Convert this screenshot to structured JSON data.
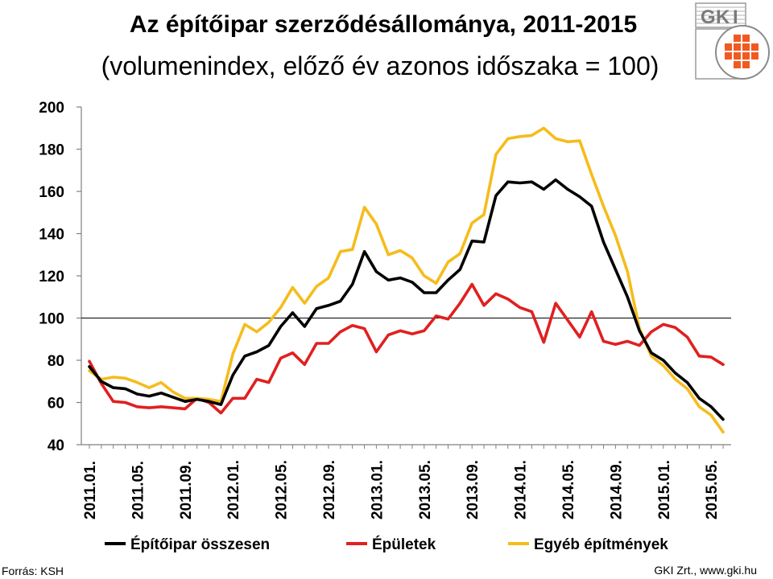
{
  "header": {
    "title": "Az építőipar szerződésállománya, 2011-2015",
    "subtitle": "(volumenindex, előző év azonos időszaka = 100)"
  },
  "logo": {
    "letters": [
      "G",
      "K",
      "I"
    ],
    "icon": "gki-logo-icon"
  },
  "footer": {
    "source": "Forrás: KSH",
    "credit": "GKI Zrt., www.gki.hu"
  },
  "colors": {
    "total": "#000000",
    "buildings": "#e02020",
    "other": "#f5bc1c",
    "reference_line": "#000000",
    "axis": "#808080"
  },
  "chart_data": {
    "type": "line",
    "title": "Az építőipar szerződésállománya, 2011-2015",
    "subtitle": "(volumenindex, előző év azonos időszaka = 100)",
    "xlabel": "",
    "ylabel": "",
    "ylim": [
      40,
      200
    ],
    "yticks": [
      40,
      60,
      80,
      100,
      120,
      140,
      160,
      180,
      200
    ],
    "reference_value": 100,
    "grid": false,
    "legend_position": "bottom",
    "x": [
      "2011.01.",
      "2011.02.",
      "2011.03.",
      "2011.04.",
      "2011.05.",
      "2011.06.",
      "2011.07.",
      "2011.08.",
      "2011.09.",
      "2011.10.",
      "2011.11.",
      "2011.12.",
      "2012.01.",
      "2012.02.",
      "2012.03.",
      "2012.04.",
      "2012.05.",
      "2012.06.",
      "2012.07.",
      "2012.08.",
      "2012.09.",
      "2012.10.",
      "2012.11.",
      "2012.12.",
      "2013.01.",
      "2013.02.",
      "2013.03.",
      "2013.04.",
      "2013.05.",
      "2013.06.",
      "2013.07.",
      "2013.08.",
      "2013.09.",
      "2013.10.",
      "2013.11.",
      "2013.12.",
      "2014.01.",
      "2014.02.",
      "2014.03.",
      "2014.04.",
      "2014.05.",
      "2014.06.",
      "2014.07.",
      "2014.08.",
      "2014.09.",
      "2014.10.",
      "2014.11.",
      "2014.12.",
      "2015.01.",
      "2015.02.",
      "2015.03.",
      "2015.04.",
      "2015.05.",
      "2015.06."
    ],
    "xtick_labels": [
      "2011.01.",
      "2011.05.",
      "2011.09.",
      "2012.01.",
      "2012.05.",
      "2012.09.",
      "2013.01.",
      "2013.05.",
      "2013.09.",
      "2014.01.",
      "2014.05.",
      "2014.09.",
      "2015.01.",
      "2015.05."
    ],
    "series": [
      {
        "name": "Építőipar összesen",
        "color": "#000000",
        "values": [
          77,
          70,
          67,
          66.5,
          64,
          63,
          64.5,
          62.5,
          60.5,
          61.5,
          60.5,
          59,
          73,
          82,
          84,
          87,
          96,
          102.5,
          96,
          104.5,
          106,
          108,
          116,
          131.5,
          122,
          118,
          119,
          117,
          112,
          112,
          118,
          123,
          136.5,
          136,
          158,
          164.5,
          164,
          164.5,
          161,
          165.5,
          161,
          157.5,
          153,
          136,
          123,
          110,
          94,
          83.5,
          80,
          74,
          69.5,
          62,
          58,
          52
        ]
      },
      {
        "name": "Épületek",
        "color": "#e02020",
        "values": [
          79.5,
          69,
          60.5,
          60,
          58,
          57.5,
          58,
          57.5,
          57,
          62,
          60,
          55,
          62,
          62,
          71,
          69.5,
          81,
          83.5,
          78,
          88,
          88,
          93.5,
          96.5,
          95,
          84,
          92,
          94,
          92.5,
          94,
          101,
          99.5,
          107,
          116,
          106,
          111.5,
          109,
          105,
          103,
          88.5,
          107,
          99,
          91,
          103,
          89,
          87.5,
          89,
          87,
          93.5,
          97,
          95.5,
          91,
          82,
          81.5,
          78
        ]
      },
      {
        "name": "Egyéb építmények",
        "color": "#f5bc1c",
        "values": [
          75,
          71,
          72,
          71.5,
          69.5,
          67,
          69.5,
          65,
          62,
          62,
          61.5,
          60.5,
          83,
          97,
          93.5,
          98,
          105,
          114.5,
          107,
          115,
          119,
          131.5,
          132.5,
          152.5,
          144.5,
          130,
          132,
          128.5,
          120,
          116.5,
          126.5,
          130.5,
          145,
          149,
          177.5,
          185,
          186,
          186.5,
          190,
          185,
          183.5,
          184,
          168,
          153,
          139,
          122,
          95,
          82,
          77.5,
          71,
          66.5,
          58,
          54,
          46
        ]
      }
    ]
  }
}
